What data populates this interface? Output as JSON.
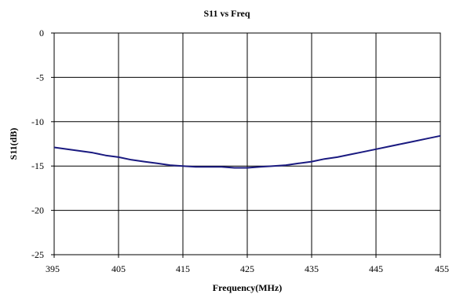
{
  "chart_data": {
    "type": "line",
    "title": "S11 vs Freq",
    "xlabel": "Frequency(MHz)",
    "ylabel": "S11(dB)",
    "xlim": [
      395,
      455
    ],
    "ylim": [
      -25,
      0
    ],
    "xticks": [
      395,
      405,
      415,
      425,
      435,
      445,
      455
    ],
    "yticks": [
      0,
      -5,
      -10,
      -15,
      -20,
      -25
    ],
    "grid": true,
    "line_color": "#1a1a80",
    "series": [
      {
        "x": [
          395,
          397,
          399,
          401,
          403,
          405,
          407,
          409,
          411,
          413,
          415,
          417,
          419,
          421,
          423,
          425,
          427,
          429,
          431,
          433,
          435,
          437,
          439,
          441,
          443,
          445,
          447,
          449,
          451,
          453,
          455
        ],
        "values": [
          -12.9,
          -13.1,
          -13.3,
          -13.5,
          -13.8,
          -14.0,
          -14.3,
          -14.5,
          -14.7,
          -14.9,
          -15.0,
          -15.1,
          -15.1,
          -15.1,
          -15.2,
          -15.2,
          -15.1,
          -15.0,
          -14.9,
          -14.7,
          -14.5,
          -14.2,
          -14.0,
          -13.7,
          -13.4,
          -13.1,
          -12.8,
          -12.5,
          -12.2,
          -11.9,
          -11.6
        ]
      }
    ]
  }
}
